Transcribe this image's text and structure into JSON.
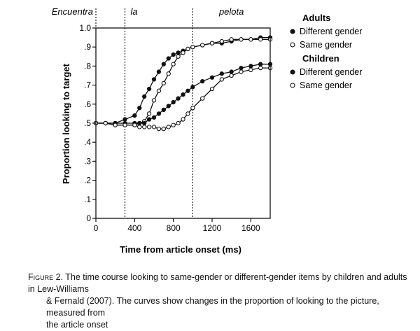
{
  "chart_data": {
    "type": "line",
    "xlabel": "Time from article onset (ms)",
    "ylabel": "Proportion looking to target",
    "xlim": [
      0,
      1800
    ],
    "ylim": [
      0,
      1.0
    ],
    "x_ticks": [
      0,
      400,
      800,
      1200,
      1600
    ],
    "x_tick_labels": [
      "0",
      "400",
      "800",
      "1200",
      "1600"
    ],
    "y_ticks": [
      0,
      0.1,
      0.2,
      0.3,
      0.4,
      0.5,
      0.6,
      0.7,
      0.8,
      0.9,
      1.0
    ],
    "y_tick_labels": [
      "0",
      ".1",
      ".2",
      ".3",
      ".4",
      ".5",
      ".6",
      ".7",
      ".8",
      ".9",
      "1.0"
    ],
    "grid": false,
    "word_markers": [
      {
        "label": "Encuentra",
        "x": 0
      },
      {
        "label": "la",
        "x": 300
      },
      {
        "label": "pelota",
        "x": 1000
      }
    ],
    "legend": {
      "placement": "right",
      "groups": [
        {
          "title": "Adults",
          "entries": [
            {
              "label": "Different gender",
              "marker": "filled"
            },
            {
              "label": "Same gender",
              "marker": "open"
            }
          ]
        },
        {
          "title": "Children",
          "entries": [
            {
              "label": "Different gender",
              "marker": "filled"
            },
            {
              "label": "Same gender",
              "marker": "open"
            }
          ]
        }
      ]
    },
    "series": [
      {
        "group": "Adults",
        "condition": "Different gender",
        "marker": "filled",
        "x": [
          0,
          100,
          200,
          300,
          400,
          450,
          500,
          550,
          600,
          650,
          700,
          750,
          800,
          850,
          900,
          950,
          1000,
          1100,
          1200,
          1300,
          1400,
          1500,
          1600,
          1700,
          1800
        ],
        "y": [
          0.5,
          0.5,
          0.5,
          0.52,
          0.54,
          0.58,
          0.64,
          0.68,
          0.73,
          0.77,
          0.81,
          0.84,
          0.86,
          0.87,
          0.88,
          0.89,
          0.9,
          0.91,
          0.92,
          0.92,
          0.93,
          0.94,
          0.94,
          0.95,
          0.95
        ]
      },
      {
        "group": "Adults",
        "condition": "Same gender",
        "marker": "open",
        "x": [
          0,
          100,
          200,
          300,
          400,
          450,
          500,
          550,
          600,
          650,
          700,
          750,
          800,
          850,
          900,
          950,
          1000,
          1100,
          1200,
          1300,
          1400,
          1500,
          1600,
          1700,
          1800
        ],
        "y": [
          0.5,
          0.5,
          0.49,
          0.49,
          0.49,
          0.5,
          0.51,
          0.55,
          0.62,
          0.67,
          0.71,
          0.76,
          0.81,
          0.85,
          0.87,
          0.89,
          0.9,
          0.91,
          0.92,
          0.93,
          0.94,
          0.94,
          0.94,
          0.94,
          0.94
        ]
      },
      {
        "group": "Children",
        "condition": "Different gender",
        "marker": "filled",
        "x": [
          0,
          100,
          200,
          300,
          400,
          450,
          500,
          550,
          600,
          650,
          700,
          750,
          800,
          850,
          900,
          950,
          1000,
          1100,
          1200,
          1300,
          1400,
          1500,
          1600,
          1700,
          1800
        ],
        "y": [
          0.5,
          0.5,
          0.5,
          0.5,
          0.5,
          0.5,
          0.5,
          0.52,
          0.53,
          0.55,
          0.57,
          0.59,
          0.61,
          0.63,
          0.65,
          0.67,
          0.69,
          0.72,
          0.74,
          0.76,
          0.77,
          0.79,
          0.8,
          0.81,
          0.81
        ]
      },
      {
        "group": "Children",
        "condition": "Same gender",
        "marker": "open",
        "x": [
          0,
          100,
          200,
          300,
          400,
          450,
          500,
          550,
          600,
          650,
          700,
          750,
          800,
          850,
          900,
          950,
          1000,
          1100,
          1200,
          1300,
          1400,
          1500,
          1600,
          1700,
          1800
        ],
        "y": [
          0.5,
          0.5,
          0.49,
          0.49,
          0.49,
          0.48,
          0.48,
          0.48,
          0.48,
          0.47,
          0.47,
          0.48,
          0.49,
          0.5,
          0.52,
          0.55,
          0.58,
          0.63,
          0.68,
          0.73,
          0.75,
          0.77,
          0.78,
          0.79,
          0.79
        ]
      }
    ]
  },
  "caption": {
    "figure_label": "Figure 2.",
    "line1": "The time course looking to same-gender or different-gender items by children and adults in Lew-Williams",
    "line2": "& Fernald (2007). The curves show changes in the proportion of looking to the picture, measured from",
    "line3": "the article onset"
  }
}
